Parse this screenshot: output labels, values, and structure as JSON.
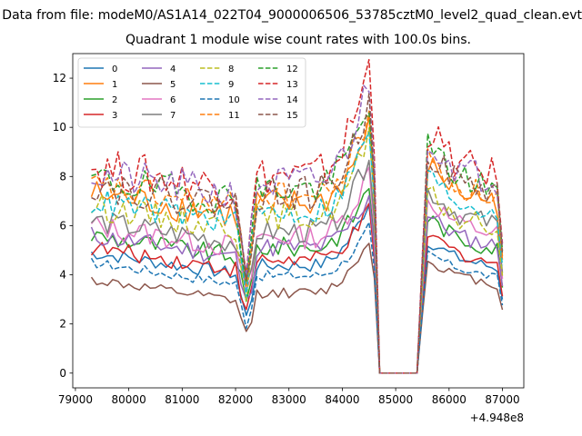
{
  "suptitle": "Data from file: modeM0/AS1A14_022T04_9000006506_53785cztM0_level2_quad_clean.evt",
  "chart_data": {
    "type": "line",
    "title": "Quadrant 1 module wise count rates with 100.0s bins.",
    "xlabel": "",
    "ylabel": "",
    "x_offset_label": "+4.948e8",
    "xlim": [
      78950,
      87400
    ],
    "ylim": [
      -0.6,
      13.0
    ],
    "xticks": [
      79000,
      80000,
      81000,
      82000,
      83000,
      84000,
      85000,
      86000,
      87000
    ],
    "yticks": [
      0,
      2,
      4,
      6,
      8,
      10,
      12
    ],
    "grid": false,
    "legend": {
      "placement": "top-left",
      "columns": 4
    },
    "series": [
      {
        "name": "0",
        "color": "#1f77b4",
        "dash": "solid",
        "base": 4.9,
        "peak": 6.9,
        "post": 5.0,
        "bump": 0.4
      },
      {
        "name": "1",
        "color": "#ff7f0e",
        "dash": "solid",
        "base": 7.3,
        "peak": 9.9,
        "post": 7.7,
        "bump": 0.9
      },
      {
        "name": "2",
        "color": "#2ca02c",
        "dash": "solid",
        "base": 5.6,
        "peak": 7.5,
        "post": 5.8,
        "bump": 0.6
      },
      {
        "name": "3",
        "color": "#d62728",
        "dash": "solid",
        "base": 5.1,
        "peak": 6.5,
        "post": 5.2,
        "bump": 0.5
      },
      {
        "name": "4",
        "color": "#9467bd",
        "dash": "solid",
        "base": 5.6,
        "peak": 7.1,
        "post": 5.9,
        "bump": 0.6
      },
      {
        "name": "5",
        "color": "#8c564b",
        "dash": "solid",
        "base": 3.8,
        "peak": 5.4,
        "post": 4.3,
        "bump": 0.3
      },
      {
        "name": "6",
        "color": "#e377c2",
        "dash": "solid",
        "base": 6.0,
        "peak": 8.1,
        "post": 6.4,
        "bump": 0.7
      },
      {
        "name": "7",
        "color": "#7f7f7f",
        "dash": "solid",
        "base": 6.2,
        "peak": 8.8,
        "post": 6.8,
        "bump": 0.7
      },
      {
        "name": "8",
        "color": "#bcbd22",
        "dash": "dashed",
        "base": 6.8,
        "peak": 9.5,
        "post": 6.6,
        "bump": 0.8
      },
      {
        "name": "9",
        "color": "#17becf",
        "dash": "dashed",
        "base": 7.0,
        "peak": 9.8,
        "post": 7.3,
        "bump": 0.8
      },
      {
        "name": "10",
        "color": "#1f77b4",
        "dash": "dashed",
        "base": 4.5,
        "peak": 5.9,
        "post": 4.6,
        "bump": 0.3
      },
      {
        "name": "11",
        "color": "#ff7f0e",
        "dash": "dashed",
        "base": 7.6,
        "peak": 10.5,
        "post": 7.9,
        "bump": 0.9
      },
      {
        "name": "12",
        "color": "#2ca02c",
        "dash": "dashed",
        "base": 7.9,
        "peak": 11.0,
        "post": 8.3,
        "bump": 1.0
      },
      {
        "name": "13",
        "color": "#d62728",
        "dash": "dashed",
        "base": 8.4,
        "peak": 12.3,
        "post": 8.8,
        "bump": 1.2
      },
      {
        "name": "14",
        "color": "#9467bd",
        "dash": "dashed",
        "base": 8.1,
        "peak": 11.7,
        "post": 8.6,
        "bump": 1.1
      },
      {
        "name": "15",
        "color": "#8c564b",
        "dash": "dashed",
        "base": 7.7,
        "peak": 10.8,
        "post": 8.1,
        "bump": 1.0
      }
    ]
  }
}
